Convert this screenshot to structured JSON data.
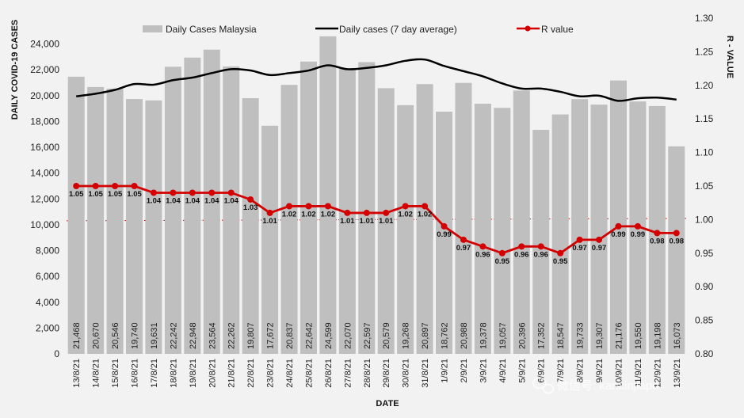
{
  "chart_data": {
    "type": "bar",
    "title": "",
    "xlabel": "DATE",
    "ylabel": "DAILY COVID-19 CASES",
    "y2label": "R - VALUE",
    "ylim": [
      0,
      26000
    ],
    "y2lim": [
      0.8,
      1.3
    ],
    "yticks": [
      "0",
      "2,000",
      "4,000",
      "6,000",
      "8,000",
      "10,000",
      "12,000",
      "14,000",
      "16,000",
      "18,000",
      "20,000",
      "22,000",
      "24,000"
    ],
    "y2ticks": [
      "0.80",
      "0.85",
      "0.90",
      "0.95",
      "1.00",
      "1.05",
      "1.10",
      "1.15",
      "1.20",
      "1.25",
      "1.30"
    ],
    "categories": [
      "13/8/21",
      "14/8/21",
      "15/8/21",
      "16/8/21",
      "17/8/21",
      "18/8/21",
      "19/8/21",
      "20/8/21",
      "21/8/21",
      "22/8/21",
      "23/8/21",
      "24/8/21",
      "25/8/21",
      "26/8/21",
      "27/8/21",
      "28/8/21",
      "29/8/21",
      "30/8/21",
      "31/8/21",
      "1/9/21",
      "2/9/21",
      "3/9/21",
      "4/9/21",
      "5/9/21",
      "6/9/21",
      "7/9/21",
      "8/9/21",
      "9/9/21",
      "10/9/21",
      "11/9/21",
      "12/9/21",
      "13/9/21"
    ],
    "series": [
      {
        "name": "Daily Cases Malaysia",
        "kind": "bar",
        "color": "#bfbfbf",
        "values": [
          21468,
          20670,
          20546,
          19740,
          19631,
          22242,
          22948,
          23564,
          22262,
          19807,
          17672,
          20837,
          22642,
          24599,
          22070,
          22597,
          20579,
          19268,
          20897,
          18762,
          20988,
          19378,
          19057,
          20396,
          17352,
          18547,
          19733,
          19307,
          21176,
          19550,
          19198,
          16073
        ],
        "labels": [
          "21,468",
          "20,670",
          "20,546",
          "19,740",
          "19,631",
          "22,242",
          "22,948",
          "23,564",
          "22,262",
          "19,807",
          "17,672",
          "20,837",
          "22,642",
          "24,599",
          "22,070",
          "22,597",
          "20,579",
          "19,268",
          "20,897",
          "18,762",
          "20,988",
          "19,378",
          "19,057",
          "20,396",
          "17,352",
          "18,547",
          "19,733",
          "19,307",
          "21,176",
          "19,550",
          "19,198",
          "16,073"
        ]
      },
      {
        "name": "Daily cases (7 day average)",
        "kind": "line",
        "color": "#000000",
        "values": [
          19950,
          20150,
          20450,
          20900,
          20850,
          21200,
          21400,
          21750,
          22050,
          21950,
          21600,
          21750,
          21950,
          22350,
          22050,
          22150,
          22350,
          22700,
          22800,
          22300,
          21900,
          21500,
          20950,
          20550,
          20550,
          20300,
          19950,
          20000,
          19600,
          19800,
          19850,
          19700
        ]
      },
      {
        "name": "R value",
        "kind": "line",
        "axis": "right",
        "color": "#d40000",
        "values": [
          1.05,
          1.05,
          1.05,
          1.05,
          1.04,
          1.04,
          1.04,
          1.04,
          1.04,
          1.03,
          1.01,
          1.02,
          1.02,
          1.02,
          1.01,
          1.01,
          1.01,
          1.02,
          1.02,
          0.99,
          0.97,
          0.96,
          0.95,
          0.96,
          0.96,
          0.95,
          0.97,
          0.97,
          0.99,
          0.99,
          0.98,
          0.98
        ],
        "labels": [
          "1.05",
          "1.05",
          "1.05",
          "1.05",
          "1.04",
          "1.04",
          "1.04",
          "1.04",
          "1.04",
          "1.03",
          "1.01",
          "1.02",
          "1.02",
          "1.02",
          "1.01",
          "1.01",
          "1.01",
          "1.02",
          "1.02",
          "0.99",
          "0.97",
          "0.96",
          "0.95",
          "0.96",
          "0.96",
          "0.95",
          "0.97",
          "0.97",
          "0.99",
          "0.99",
          "0.98",
          "0.98"
        ]
      }
    ],
    "reference_line": {
      "axis": "right",
      "value": 1.0,
      "style": "dotted",
      "color": "#d40000"
    },
    "legend": [
      "Daily Cases Malaysia",
      "Daily cases (7 day average)",
      "R value"
    ],
    "legend_position": "top",
    "grid": false
  },
  "watermark": {
    "text": "微信号: kanxinjiapo",
    "icon": "wechat-logo-icon"
  }
}
